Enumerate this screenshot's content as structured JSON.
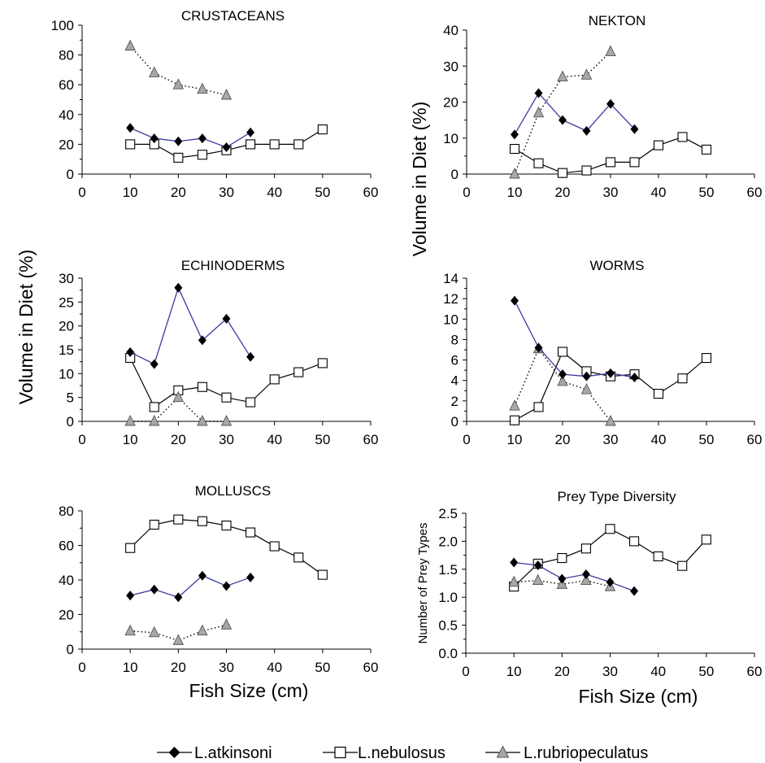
{
  "figure": {
    "ylabel_shared": "Volume in Diet (%)",
    "xlabel_shared": "Fish Size (cm)",
    "legend": [
      "L.atkinsoni",
      "L.nebulosus",
      "L.rubriopeculatus"
    ],
    "colors": {
      "atkinsoni_line": "#3a3aa0",
      "atkinsoni_marker": "#000000",
      "nebulosus_marker_fill": "#ffffff",
      "nebulosus_line": "#000000",
      "rubriopeculatus_marker": "#a8a8a8",
      "rubriopeculatus_line": "#000000"
    }
  },
  "chart_data": [
    {
      "type": "line",
      "title": "CRUSTACEANS",
      "xlim": [
        0,
        60
      ],
      "ylim": [
        0,
        100
      ],
      "xticks": [
        "0",
        "10",
        "20",
        "30",
        "40",
        "50",
        "60"
      ],
      "yticks": [
        "0",
        "20",
        "40",
        "60",
        "80",
        "100"
      ],
      "series": [
        {
          "name": "L.atkinsoni",
          "x": [
            10,
            15,
            20,
            25,
            30,
            35
          ],
          "y": [
            31,
            24,
            22,
            24,
            18,
            28
          ]
        },
        {
          "name": "L.nebulosus",
          "x": [
            10,
            15,
            20,
            25,
            30,
            35,
            40,
            45,
            50
          ],
          "y": [
            20,
            20,
            11,
            13,
            16,
            20,
            20,
            20,
            30
          ]
        },
        {
          "name": "L.rubriopeculatus",
          "x": [
            10,
            15,
            20,
            25,
            30
          ],
          "y": [
            86,
            68,
            60,
            57,
            53
          ]
        }
      ]
    },
    {
      "type": "line",
      "title": "NEKTON",
      "xlim": [
        0,
        60
      ],
      "ylim": [
        0,
        40
      ],
      "xticks": [
        "0",
        "10",
        "20",
        "30",
        "40",
        "50",
        "60"
      ],
      "yticks": [
        "0",
        "10",
        "20",
        "30",
        "40"
      ],
      "series": [
        {
          "name": "L.atkinsoni",
          "x": [
            10,
            15,
            20,
            25,
            30,
            35
          ],
          "y": [
            11,
            22.5,
            15,
            12,
            19.5,
            12.5
          ]
        },
        {
          "name": "L.nebulosus",
          "x": [
            10,
            15,
            20,
            25,
            30,
            35,
            40,
            45,
            50
          ],
          "y": [
            7,
            3,
            0.3,
            1,
            3.3,
            3.3,
            8,
            10.3,
            6.8
          ]
        },
        {
          "name": "L.rubriopeculatus",
          "x": [
            10,
            15,
            20,
            25,
            30
          ],
          "y": [
            0,
            17,
            27,
            27.5,
            34
          ]
        }
      ]
    },
    {
      "type": "line",
      "title": "ECHINODERMS",
      "xlim": [
        0,
        60
      ],
      "ylim": [
        0,
        30
      ],
      "xticks": [
        "0",
        "10",
        "20",
        "30",
        "40",
        "50",
        "60"
      ],
      "yticks": [
        "0",
        "5",
        "10",
        "15",
        "20",
        "25",
        "30"
      ],
      "series": [
        {
          "name": "L.atkinsoni",
          "x": [
            10,
            15,
            20,
            25,
            30,
            35
          ],
          "y": [
            14.5,
            12,
            28,
            17,
            21.5,
            13.5
          ]
        },
        {
          "name": "L.nebulosus",
          "x": [
            10,
            15,
            20,
            25,
            30,
            35,
            40,
            45,
            50
          ],
          "y": [
            13.3,
            3,
            6.5,
            7.2,
            5,
            4,
            8.8,
            10.3,
            12.2
          ]
        },
        {
          "name": "L.rubriopeculatus",
          "x": [
            10,
            15,
            20,
            25,
            30
          ],
          "y": [
            0,
            0,
            5,
            0,
            0
          ]
        }
      ]
    },
    {
      "type": "line",
      "title": "WORMS",
      "xlim": [
        0,
        60
      ],
      "ylim": [
        0,
        14
      ],
      "xticks": [
        "0",
        "10",
        "20",
        "30",
        "40",
        "50",
        "60"
      ],
      "yticks": [
        "0",
        "2",
        "4",
        "6",
        "8",
        "10",
        "12",
        "14"
      ],
      "series": [
        {
          "name": "L.atkinsoni",
          "x": [
            10,
            15,
            20,
            25,
            30,
            35
          ],
          "y": [
            11.8,
            7.2,
            4.6,
            4.4,
            4.7,
            4.3
          ]
        },
        {
          "name": "L.nebulosus",
          "x": [
            10,
            15,
            20,
            25,
            30,
            35,
            40,
            45,
            50
          ],
          "y": [
            0.1,
            1.4,
            6.8,
            4.9,
            4.4,
            4.6,
            2.7,
            4.2,
            6.2
          ]
        },
        {
          "name": "L.rubriopeculatus",
          "x": [
            10,
            15,
            20,
            25,
            30
          ],
          "y": [
            1.5,
            7.1,
            3.9,
            3.1,
            0
          ]
        }
      ]
    },
    {
      "type": "line",
      "title": "MOLLUSCS",
      "xlim": [
        0,
        60
      ],
      "ylim": [
        0,
        80
      ],
      "xticks": [
        "0",
        "10",
        "20",
        "30",
        "40",
        "50",
        "60"
      ],
      "yticks": [
        "0",
        "20",
        "40",
        "60",
        "80"
      ],
      "series": [
        {
          "name": "L.atkinsoni",
          "x": [
            10,
            15,
            20,
            25,
            30,
            35
          ],
          "y": [
            31,
            34.5,
            30,
            42.5,
            36.5,
            41.5
          ]
        },
        {
          "name": "L.nebulosus",
          "x": [
            10,
            15,
            20,
            25,
            30,
            35,
            40,
            45,
            50
          ],
          "y": [
            58.5,
            72,
            75,
            74,
            71.5,
            67.5,
            59.5,
            53,
            43
          ]
        },
        {
          "name": "L.rubriopeculatus",
          "x": [
            10,
            15,
            20,
            25,
            30
          ],
          "y": [
            10.5,
            9.5,
            5,
            10.5,
            14
          ]
        }
      ]
    },
    {
      "type": "line",
      "title": "Prey Type Diversity",
      "ylabel": "Number of Prey Types",
      "xlim": [
        0,
        60
      ],
      "ylim": [
        0,
        2.5
      ],
      "xticks": [
        "0",
        "10",
        "20",
        "30",
        "40",
        "50",
        "60"
      ],
      "yticks": [
        "0.0",
        "0.5",
        "1.0",
        "1.5",
        "2.0",
        "2.5"
      ],
      "series": [
        {
          "name": "L.atkinsoni",
          "x": [
            10,
            15,
            20,
            25,
            30,
            35
          ],
          "y": [
            1.62,
            1.57,
            1.33,
            1.41,
            1.27,
            1.11
          ]
        },
        {
          "name": "L.nebulosus",
          "x": [
            10,
            15,
            20,
            25,
            30,
            35,
            40,
            45,
            50
          ],
          "y": [
            1.19,
            1.6,
            1.7,
            1.87,
            2.22,
            2.0,
            1.73,
            1.56,
            2.03
          ]
        },
        {
          "name": "L.rubriopeculatus",
          "x": [
            10,
            15,
            20,
            25,
            30
          ],
          "y": [
            1.27,
            1.3,
            1.23,
            1.3,
            1.19
          ]
        }
      ]
    }
  ]
}
